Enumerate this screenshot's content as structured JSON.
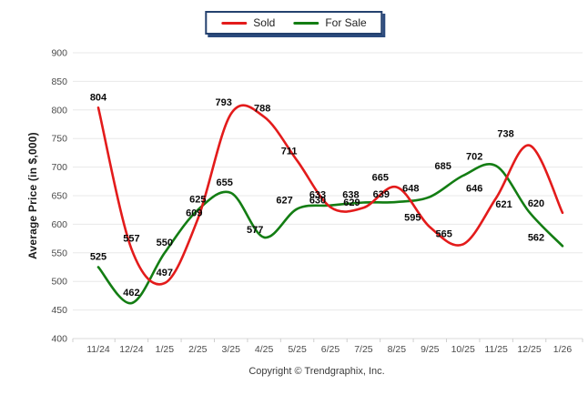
{
  "legend": {
    "items": [
      {
        "label": "Sold",
        "color": "#e31b1b"
      },
      {
        "label": "For Sale",
        "color": "#137d13"
      }
    ]
  },
  "y_axis_title": "Average Price (in $,000)",
  "footer": "Copyright © Trendgraphix, Inc.",
  "chart_data": {
    "type": "line",
    "title": "",
    "categories": [
      "11/24",
      "12/24",
      "1/25",
      "2/25",
      "3/25",
      "4/25",
      "5/25",
      "6/25",
      "7/25",
      "8/25",
      "9/25",
      "10/25",
      "11/25",
      "12/25",
      "1/26"
    ],
    "series": [
      {
        "name": "Sold",
        "color": "#e31b1b",
        "values": [
          804,
          557,
          497,
          609,
          793,
          788,
          711,
          630,
          629,
          665,
          595,
          565,
          646,
          738,
          620
        ]
      },
      {
        "name": "For Sale",
        "color": "#137d13",
        "values": [
          525,
          462,
          550,
          625,
          655,
          577,
          627,
          633,
          638,
          639,
          648,
          685,
          702,
          621,
          562
        ]
      }
    ],
    "xlabel": "",
    "ylabel": "Average Price (in $,000)",
    "ylim": [
      400,
      900
    ],
    "yticks": [
      400,
      450,
      500,
      550,
      600,
      650,
      700,
      750,
      800,
      850,
      900
    ],
    "grid": true,
    "legend_position": "top-center",
    "data_labels": true,
    "curve": "smooth"
  }
}
